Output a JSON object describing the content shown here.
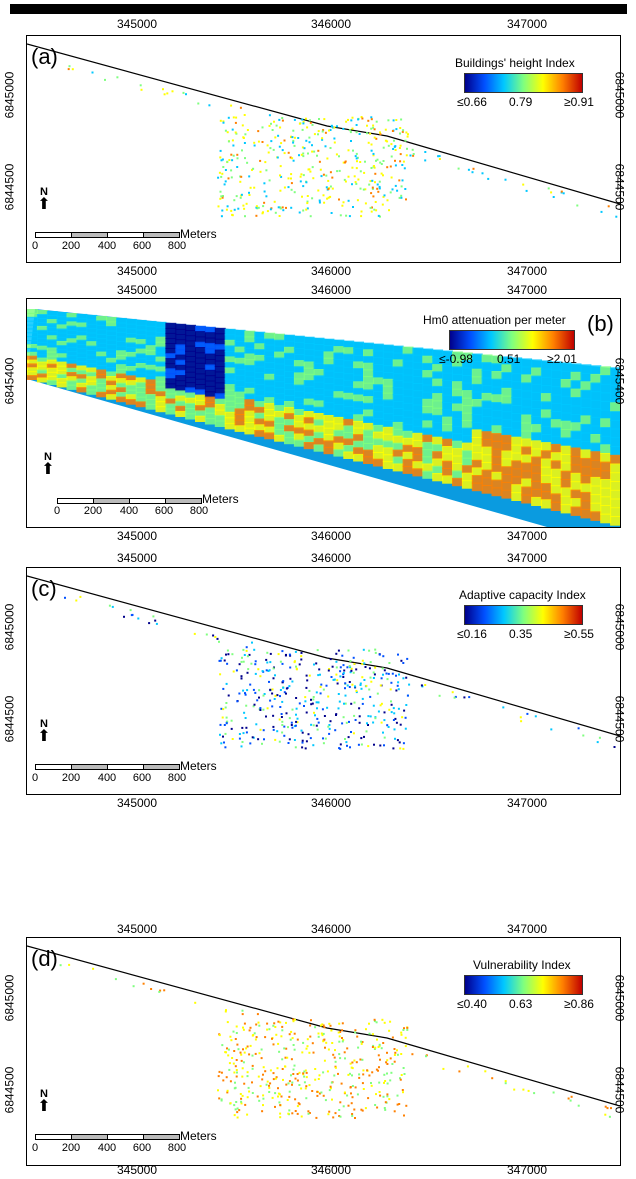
{
  "x_ticks": [
    "345000",
    "346000",
    "347000"
  ],
  "panels": [
    {
      "id": "a",
      "letter": "(a)",
      "legend_title": "Buildings' height Index",
      "legend_min": "≤0.66",
      "legend_mid": "0.79",
      "legend_max": "≥0.91",
      "y_ticks": [
        "6845000",
        "6844500"
      ],
      "palette": "rainbow",
      "layer": "buildings"
    },
    {
      "id": "b",
      "letter": "(b)",
      "legend_title": "Hm0 attenuation per meter",
      "legend_min": "≤-0.98",
      "legend_mid": "0.51",
      "legend_max": "≥2.01",
      "y_ticks": [
        "6845400"
      ],
      "palette": "rainbow",
      "layer": "raster"
    },
    {
      "id": "c",
      "letter": "(c)",
      "legend_title": "Adaptive capacity Index",
      "legend_min": "≤0.16",
      "legend_mid": "0.35",
      "legend_max": "≥0.55",
      "y_ticks": [
        "6845000",
        "6844500"
      ],
      "palette": "rainbow",
      "layer": "buildings"
    },
    {
      "id": "d",
      "letter": "(d)",
      "legend_title": "Vulnerability Index",
      "legend_min": "≤0.40",
      "legend_mid": "0.63",
      "legend_max": "≥0.86",
      "y_ticks": [
        "6845000",
        "6844500"
      ],
      "palette": "rainbow",
      "layer": "buildings"
    }
  ],
  "north_label": "N",
  "scale": {
    "unit": "Meters",
    "labels": [
      "0",
      "200",
      "400",
      "600",
      "800"
    ]
  },
  "colors": {
    "frame": "#000000",
    "coastline": "#000000",
    "ramp": [
      "#00008b",
      "#0050ff",
      "#00c8ff",
      "#7fff7f",
      "#ffff00",
      "#ff8000",
      "#c00000"
    ]
  }
}
